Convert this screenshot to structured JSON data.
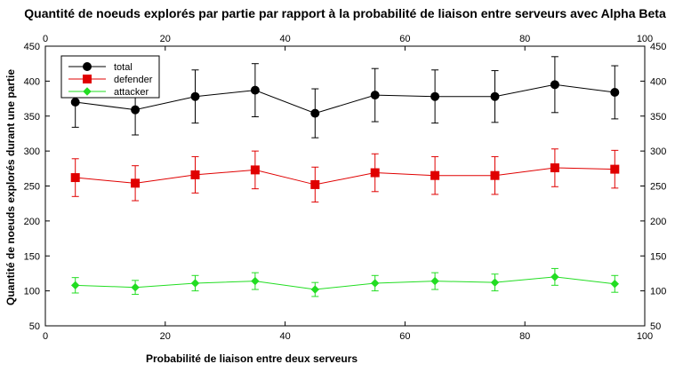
{
  "chart_data": {
    "type": "line",
    "title": "Quantité de noeuds explorés par partie par rapport à la probabilité de liaison entre serveurs avec Alpha Beta",
    "xlabel": "Probabilité de liaison entre deux serveurs",
    "ylabel": "Quantité de noeuds explorés durant une partie",
    "xlim": [
      0,
      100
    ],
    "ylim": [
      50,
      450
    ],
    "xticks": [
      0,
      20,
      40,
      60,
      80,
      100
    ],
    "yticks": [
      50,
      100,
      150,
      200,
      250,
      300,
      350,
      400,
      450
    ],
    "grid": false,
    "legend_position": "top-left",
    "x": [
      5,
      15,
      25,
      35,
      45,
      55,
      65,
      75,
      85,
      95
    ],
    "series": [
      {
        "name": "total",
        "color": "#000000",
        "marker": "circle",
        "values": [
          370,
          359,
          378,
          387,
          354,
          380,
          378,
          378,
          395,
          384
        ],
        "error": [
          36,
          36,
          38,
          38,
          35,
          38,
          38,
          37,
          40,
          38
        ]
      },
      {
        "name": "defender",
        "color": "#e00000",
        "marker": "square",
        "values": [
          262,
          254,
          266,
          273,
          252,
          269,
          265,
          265,
          276,
          274
        ],
        "error": [
          27,
          25,
          26,
          27,
          25,
          27,
          27,
          27,
          27,
          27
        ]
      },
      {
        "name": "attacker",
        "color": "#22dd22",
        "marker": "diamond",
        "values": [
          108,
          105,
          111,
          114,
          102,
          111,
          114,
          112,
          120,
          110
        ],
        "error": [
          11,
          10,
          11,
          12,
          10,
          11,
          12,
          12,
          12,
          12
        ]
      }
    ]
  }
}
